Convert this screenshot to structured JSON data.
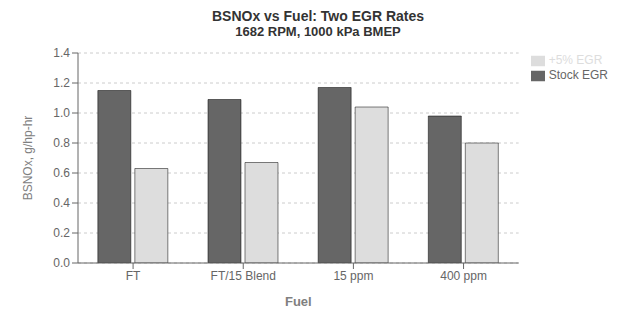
{
  "chart_data": {
    "type": "bar",
    "title": "BSNOx vs Fuel: Two EGR Rates",
    "subtitle": "1682 RPM, 1000 kPa BMEP",
    "categories": [
      "FT",
      "FT/15 Blend",
      "15 ppm",
      "400 ppm"
    ],
    "series": [
      {
        "name": "Stock EGR",
        "color": "#666666",
        "values": [
          1.15,
          1.09,
          1.17,
          0.98
        ]
      },
      {
        "name": "+5% EGR",
        "color": "#dddddd",
        "values": [
          0.63,
          0.67,
          1.04,
          0.8
        ]
      }
    ],
    "xlabel": "Fuel",
    "ylabel": "BSNOx, g/hp-hr",
    "ylim": [
      0,
      1.4
    ],
    "yticks": [
      {
        "value": 0,
        "label": "0.0"
      },
      0.2,
      0.4,
      0.6,
      0.8,
      {
        "value": 1.0,
        "label": "1.0"
      },
      1.2,
      1.4
    ],
    "grid": true,
    "legend": "upper right"
  }
}
